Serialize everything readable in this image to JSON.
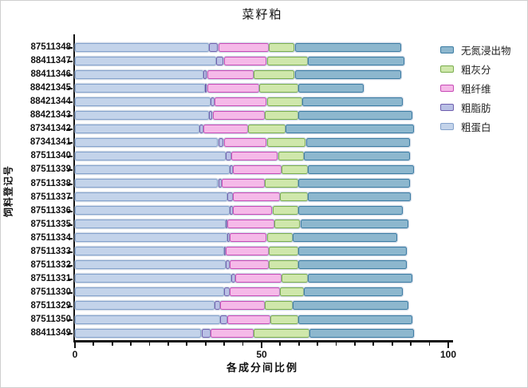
{
  "title": "菜籽粕",
  "x_axis_label": "各成分间比例",
  "y_axis_label": "饲料登记号",
  "chart_data": {
    "type": "bar",
    "orientation": "horizontal",
    "stacked": true,
    "xlim": [
      0,
      100
    ],
    "x_major_ticks": [
      0,
      50,
      100
    ],
    "x_minor_step": 5,
    "legend_position": "right-top",
    "legend_order_note": "legend lists series in reverse stacking order (top = last segment)",
    "categories": [
      "87511348",
      "88411347",
      "88411346",
      "88421345",
      "88421344",
      "88421343",
      "87341342",
      "87341341",
      "87511340",
      "87511339",
      "87511338",
      "87511337",
      "87511336",
      "87511335",
      "87511334",
      "87511333",
      "87511332",
      "87511331",
      "87511330",
      "87511329",
      "87511350",
      "88411349"
    ],
    "series": [
      {
        "name": "粗蛋白",
        "fill": "#c3d3ea",
        "border": "#84a2cc",
        "values": [
          36,
          38,
          34.5,
          35,
          36.5,
          36,
          33.5,
          38.5,
          40.5,
          41.5,
          38.5,
          41,
          41.5,
          40.5,
          41,
          40,
          40.5,
          42,
          40,
          37.5,
          39,
          34
        ]
      },
      {
        "name": "粗脂肪",
        "fill": "#b9c0e5",
        "border": "#6f5fae",
        "values": [
          2.5,
          2,
          1,
          0.5,
          1,
          1,
          1,
          1.5,
          1.5,
          1,
          1,
          1.5,
          1,
          0.5,
          0.5,
          0.5,
          1,
          1,
          1.5,
          1.5,
          2,
          2.5
        ]
      },
      {
        "name": "粗纤维",
        "fill": "#f5b9e8",
        "border": "#c74ab6",
        "values": [
          13.5,
          11.5,
          12.5,
          14,
          14,
          14,
          12,
          11.5,
          12.5,
          13,
          11.5,
          12.5,
          10.5,
          12.5,
          10,
          11.5,
          10.5,
          12.5,
          13.5,
          12,
          11.5,
          11.5
        ]
      },
      {
        "name": "粗灰分",
        "fill": "#cfe7ab",
        "border": "#79ad4c",
        "values": [
          7,
          11,
          11,
          10.5,
          9.5,
          9,
          10,
          10.5,
          7,
          7,
          9,
          7.5,
          7,
          7,
          7,
          8,
          8,
          7,
          6.5,
          7.5,
          7.5,
          15
        ]
      },
      {
        "name": "无氮浸出物",
        "fill": "#8db7ce",
        "border": "#3c7ca3",
        "values": [
          28.5,
          26,
          28.5,
          17.5,
          27,
          30.5,
          34.5,
          28,
          28.5,
          28.5,
          30,
          27.5,
          28,
          29,
          28,
          29,
          29,
          28,
          26.5,
          31,
          30.5,
          28
        ]
      }
    ]
  }
}
